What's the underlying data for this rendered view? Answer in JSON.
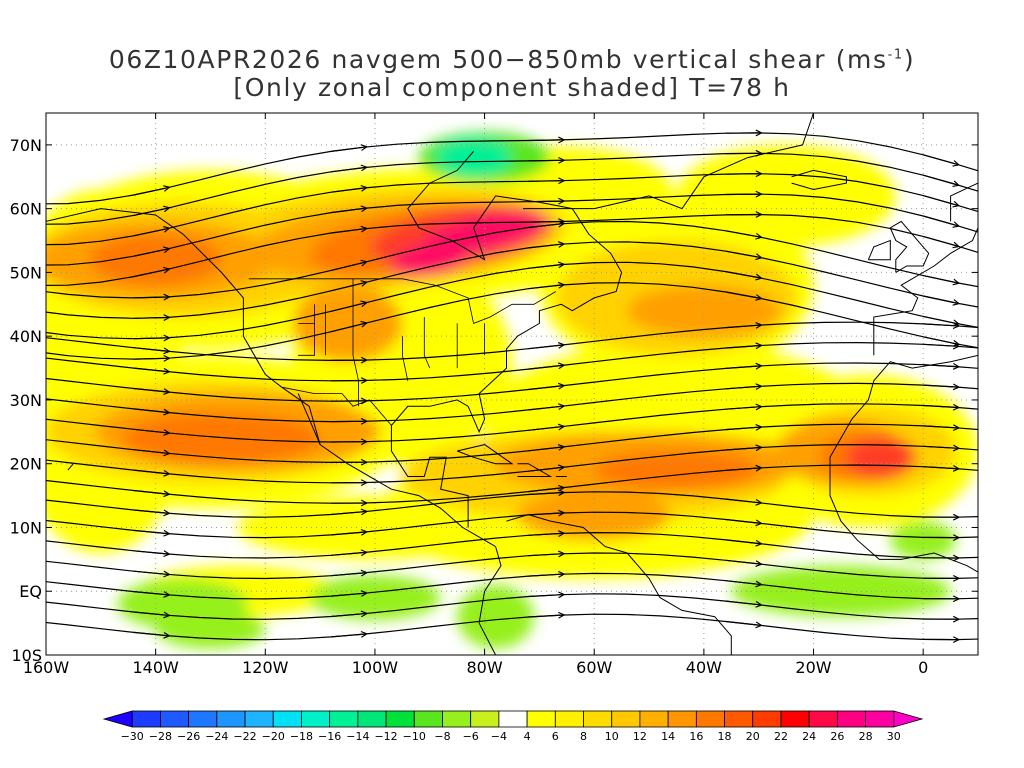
{
  "title": {
    "line1_prefix": "06Z10APR2026 navgem 500−850mb vertical shear (ms",
    "line1_sup": "-1",
    "line1_suffix": ")",
    "line2": "[Only zonal component shaded] T=78 h"
  },
  "map": {
    "lon_range": [
      -160,
      10
    ],
    "lat_range": [
      -10,
      75
    ],
    "lat_labels": [
      "70N",
      "60N",
      "50N",
      "40N",
      "30N",
      "20N",
      "10N",
      "EQ",
      "10S"
    ],
    "lat_values": [
      70,
      60,
      50,
      40,
      30,
      20,
      10,
      0,
      -10
    ],
    "lon_labels": [
      "160W",
      "140W",
      "120W",
      "100W",
      "80W",
      "60W",
      "40W",
      "20W",
      "0"
    ],
    "lon_values": [
      -160,
      -140,
      -120,
      -100,
      -80,
      -60,
      -40,
      -20,
      0
    ]
  },
  "colorbar": {
    "labels": [
      "−30",
      "−28",
      "−26",
      "−24",
      "−22",
      "−20",
      "−18",
      "−16",
      "−14",
      "−12",
      "−10",
      "−8",
      "−6",
      "−4",
      "4",
      "6",
      "8",
      "10",
      "12",
      "14",
      "16",
      "18",
      "20",
      "22",
      "24",
      "26",
      "28",
      "30"
    ],
    "colors": [
      "#1e00ff",
      "#1e3cff",
      "#1e5aff",
      "#1e78ff",
      "#1e96ff",
      "#1eb4ff",
      "#00e1f5",
      "#00f0c8",
      "#00f096",
      "#00e678",
      "#00e13c",
      "#5ae61e",
      "#96f01e",
      "#c8f01e",
      "#ffffff",
      "#ffff00",
      "#fff000",
      "#ffdc00",
      "#ffc800",
      "#ffaf00",
      "#ff9600",
      "#ff7800",
      "#ff5a00",
      "#ff3c00",
      "#ff0000",
      "#ff0a46",
      "#ff0082",
      "#ff00a0",
      "#ff00c8"
    ]
  },
  "shading_colors": {
    "yellow": "#ffff00",
    "gold": "#ffd200",
    "orange": "#ffa000",
    "dark_orange": "#ff7800",
    "red": "#ff3c28",
    "magenta": "#ff0a64",
    "light_green": "#96f01e",
    "green": "#5ae61e",
    "teal": "#00f096"
  }
}
